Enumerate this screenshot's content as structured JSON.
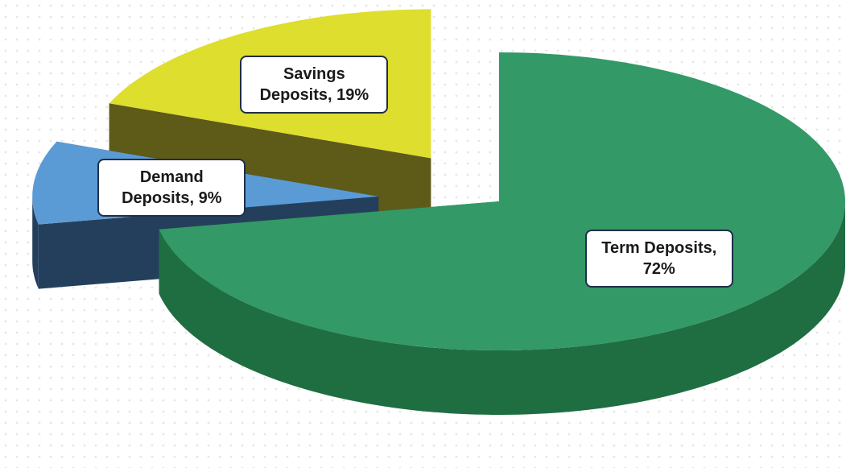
{
  "chart_data": {
    "type": "pie",
    "categories": [
      "Term Deposits",
      "Demand Deposits",
      "Savings Deposits"
    ],
    "values": [
      72,
      9,
      19
    ],
    "value_labels": [
      "Term Deposits, 72%",
      "Demand Deposits, 9%",
      "Savings Deposits, 19%"
    ],
    "colors": [
      "#339966",
      "#5b9bd5",
      "#dede2e"
    ],
    "side_colors": [
      "#1f6e42",
      "#243f5c",
      "#5e5a18"
    ],
    "explode": [
      false,
      true,
      true
    ]
  }
}
